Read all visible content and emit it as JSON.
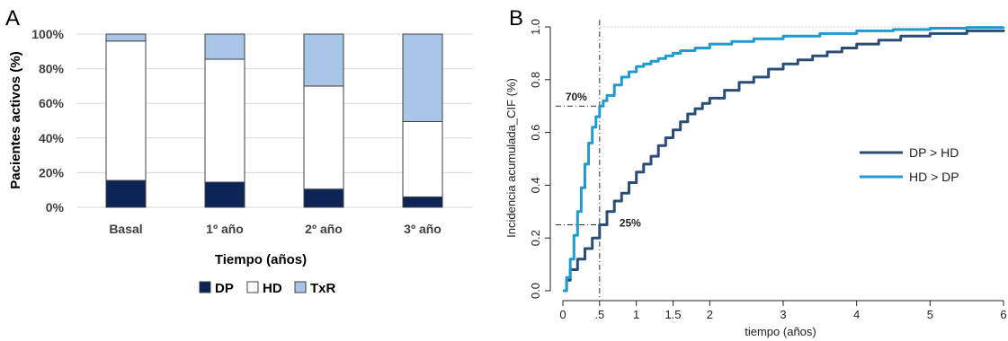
{
  "chart_data": [
    {
      "panel": "A",
      "type": "bar",
      "stacked": true,
      "title": "",
      "xlabel": "Tiempo (años)",
      "ylabel": "Pacientes activos (%)",
      "categories": [
        "Basal",
        "1º año",
        "2º año",
        "3º año"
      ],
      "ylim": [
        0,
        100
      ],
      "yticks": [
        "0%",
        "20%",
        "40%",
        "60%",
        "80%",
        "100%"
      ],
      "grid": true,
      "legend_position": "bottom",
      "series": [
        {
          "name": "DP",
          "values": [
            15.5,
            14.5,
            10.5,
            6
          ],
          "color": "#0d2456"
        },
        {
          "name": "HD",
          "values": [
            80.5,
            71,
            59.5,
            43.5
          ],
          "color": "#ffffff"
        },
        {
          "name": "TxR",
          "values": [
            4,
            14.5,
            30,
            50.5
          ],
          "color": "#a9c6e8"
        }
      ]
    },
    {
      "panel": "B",
      "type": "line",
      "title": "",
      "xlabel": "tiempo (años)",
      "ylabel": "Incidencia acumulada_CIF (%)",
      "xlim": [
        0,
        6
      ],
      "ylim": [
        0,
        1
      ],
      "xticks": [
        {
          "value": 0,
          "label": "0"
        },
        {
          "value": 0.5,
          "label": ".5"
        },
        {
          "value": 1,
          "label": "1"
        },
        {
          "value": 1.5,
          "label": "1.5"
        },
        {
          "value": 2,
          "label": "2"
        },
        {
          "value": 3,
          "label": "3"
        },
        {
          "value": 4,
          "label": "4"
        },
        {
          "value": 5,
          "label": "5"
        },
        {
          "value": 6,
          "label": "6"
        }
      ],
      "yticks": [
        {
          "value": 0,
          "label": "0.0"
        },
        {
          "value": 0.2,
          "label": "0.2"
        },
        {
          "value": 0.4,
          "label": "0.4"
        },
        {
          "value": 0.6,
          "label": "0.6"
        },
        {
          "value": 0.8,
          "label": "0.8"
        },
        {
          "value": 1.0,
          "label": "1.0"
        }
      ],
      "grid": false,
      "legend_position": "right",
      "series": [
        {
          "name": "DP > HD",
          "color": "#2a4d78",
          "x": [
            0,
            0.05,
            0.1,
            0.2,
            0.3,
            0.4,
            0.5,
            0.6,
            0.7,
            0.8,
            0.9,
            1.0,
            1.1,
            1.2,
            1.3,
            1.4,
            1.5,
            1.6,
            1.7,
            1.8,
            1.9,
            2.0,
            2.2,
            2.4,
            2.6,
            2.8,
            3.0,
            3.2,
            3.4,
            3.6,
            3.8,
            4.0,
            4.3,
            4.6,
            5.0,
            5.5,
            6.0
          ],
          "y": [
            0,
            0.04,
            0.08,
            0.12,
            0.16,
            0.2,
            0.25,
            0.3,
            0.34,
            0.37,
            0.41,
            0.45,
            0.48,
            0.51,
            0.55,
            0.58,
            0.61,
            0.64,
            0.67,
            0.69,
            0.71,
            0.73,
            0.76,
            0.79,
            0.81,
            0.84,
            0.86,
            0.875,
            0.89,
            0.905,
            0.92,
            0.935,
            0.95,
            0.965,
            0.975,
            0.985,
            0.99
          ]
        },
        {
          "name": "HD > DP",
          "color": "#1f9bd0",
          "x": [
            0,
            0.05,
            0.1,
            0.15,
            0.2,
            0.25,
            0.3,
            0.35,
            0.4,
            0.45,
            0.5,
            0.55,
            0.6,
            0.7,
            0.8,
            0.9,
            1.0,
            1.1,
            1.2,
            1.3,
            1.4,
            1.5,
            1.6,
            1.8,
            2.0,
            2.3,
            2.6,
            3.0,
            3.5,
            4.0,
            4.5,
            5.0,
            5.5,
            6.0
          ],
          "y": [
            0,
            0.05,
            0.12,
            0.21,
            0.3,
            0.39,
            0.48,
            0.56,
            0.62,
            0.66,
            0.7,
            0.72,
            0.74,
            0.78,
            0.81,
            0.83,
            0.85,
            0.86,
            0.87,
            0.88,
            0.89,
            0.9,
            0.91,
            0.92,
            0.935,
            0.945,
            0.955,
            0.965,
            0.975,
            0.985,
            0.99,
            0.995,
            0.998,
            1.0
          ]
        }
      ],
      "annotations": [
        {
          "text": "70%",
          "x": 0.5,
          "y": 0.7
        },
        {
          "text": "25%",
          "x": 0.5,
          "y": 0.25
        }
      ],
      "reference_line_x": 0.5
    }
  ],
  "panels": {
    "a_label": "A",
    "b_label": "B"
  }
}
